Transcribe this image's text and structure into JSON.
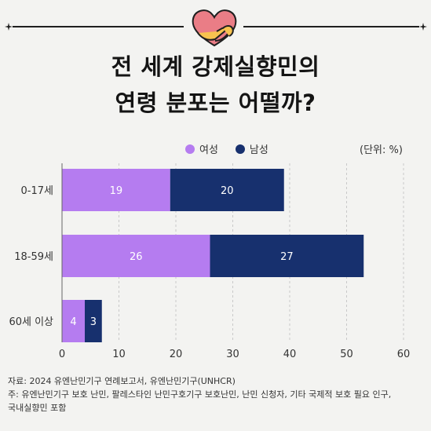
{
  "header": {
    "title_line1": "전 세계 강제실향민의",
    "title_line2": "연령 분포는 어떨까?"
  },
  "colors": {
    "female": "#b57cf0",
    "male": "#17306e",
    "heart": "#ea7d86",
    "hands": "#f7c34f",
    "background": "#f3f3f1"
  },
  "legend": {
    "female_label": "여성",
    "male_label": "남성",
    "unit": "(단위: %)"
  },
  "chart_data": {
    "type": "bar",
    "orientation": "horizontal",
    "stacked": true,
    "categories": [
      "0-17세",
      "18-59세",
      "60세 이상"
    ],
    "series": [
      {
        "name": "여성",
        "values": [
          19,
          26,
          4
        ]
      },
      {
        "name": "남성",
        "values": [
          20,
          27,
          3
        ]
      }
    ],
    "xlim": [
      0,
      60
    ],
    "xticks": [
      0,
      10,
      20,
      30,
      40,
      50,
      60
    ],
    "grid": "vertical dashed",
    "legend_position": "top"
  },
  "footer": {
    "source": "자료: 2024 유엔난민기구 연례보고서, 유엔난민기구(UNHCR)",
    "note_line1": "주: 유엔난민기구 보호 난민, 팔레스타인 난민구호기구 보호난민, 난민 신청자, 기타 국제적 보호 필요 인구,",
    "note_line2": "국내실향민 포함"
  }
}
